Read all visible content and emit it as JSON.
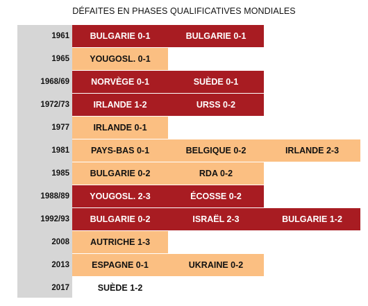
{
  "title": "DÉFAITES EN PHASES QUALIFICATIVES MONDIALES",
  "colors": {
    "red": "#a81c22",
    "orange": "#fbbf82",
    "year_column": "#d6d6d6"
  },
  "rows": [
    {
      "year": "1961",
      "style": "red",
      "defeats": [
        "BULGARIE 0-1",
        "BULGARIE 0-1"
      ]
    },
    {
      "year": "1965",
      "style": "orange",
      "defeats": [
        "YOUGOSL. 0-1"
      ]
    },
    {
      "year": "1968/69",
      "style": "red",
      "defeats": [
        "NORVÈGE 0-1",
        "SUÈDE 0-1"
      ]
    },
    {
      "year": "1972/73",
      "style": "red",
      "defeats": [
        "IRLANDE 1-2",
        "URSS 0-2"
      ]
    },
    {
      "year": "1977",
      "style": "orange",
      "defeats": [
        "IRLANDE 0-1"
      ]
    },
    {
      "year": "1981",
      "style": "orange",
      "defeats": [
        "PAYS-BAS 0-1",
        "BELGIQUE 0-2",
        "IRLANDE 2-3"
      ]
    },
    {
      "year": "1985",
      "style": "orange",
      "defeats": [
        "BULGARIE 0-2",
        "RDA 0-2"
      ]
    },
    {
      "year": "1988/89",
      "style": "red",
      "defeats": [
        "YOUGOSL. 2-3",
        "ÉCOSSE 0-2"
      ]
    },
    {
      "year": "1992/93",
      "style": "red",
      "defeats": [
        "BULGARIE 0-2",
        "ISRAËL 2-3",
        "BULGARIE 1-2"
      ]
    },
    {
      "year": "2008",
      "style": "orange",
      "defeats": [
        "AUTRICHE 1-3"
      ]
    },
    {
      "year": "2013",
      "style": "orange",
      "defeats": [
        "ESPAGNE 0-1",
        "UKRAINE 0-2"
      ]
    },
    {
      "year": "2017",
      "style": "none",
      "defeats": [
        "SUÈDE 1-2"
      ]
    }
  ]
}
